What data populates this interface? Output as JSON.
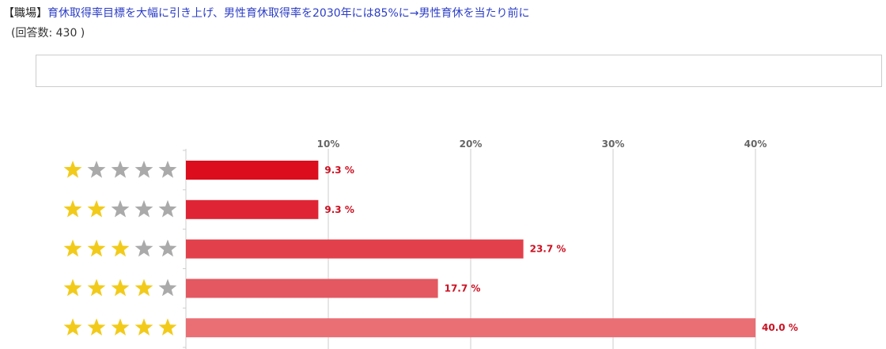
{
  "question": {
    "category": "【職場】",
    "text": "育休取得率目標を大幅に引き上げ、男性育休取得率を2030年には85%に→男性育休を当たり前に",
    "response_count": "(回答数: 430 )"
  },
  "comment_box": {
    "value": ""
  },
  "chart_data": {
    "type": "bar",
    "orientation": "horizontal",
    "categories": [
      "1 star",
      "2 stars",
      "3 stars",
      "4 stars",
      "5 stars"
    ],
    "star_ratings": [
      1,
      2,
      3,
      4,
      5
    ],
    "values": [
      9.3,
      9.3,
      23.7,
      17.7,
      40.0
    ],
    "value_labels": [
      "9.3 %",
      "9.3 %",
      "23.7 %",
      "17.7 %",
      "40.0 %"
    ],
    "xlim": [
      0,
      40
    ],
    "xticks": [
      10,
      20,
      30,
      40
    ],
    "tick_labels": [
      "10%",
      "20%",
      "30%",
      "40%"
    ],
    "grid": true,
    "bar_colors": [
      "#dc0d1c",
      "#df2535",
      "#e2404b",
      "#e45861",
      "#e96f75"
    ],
    "star_colors": {
      "filled": "#f2cb1a",
      "empty": "#aaaaaa"
    }
  }
}
